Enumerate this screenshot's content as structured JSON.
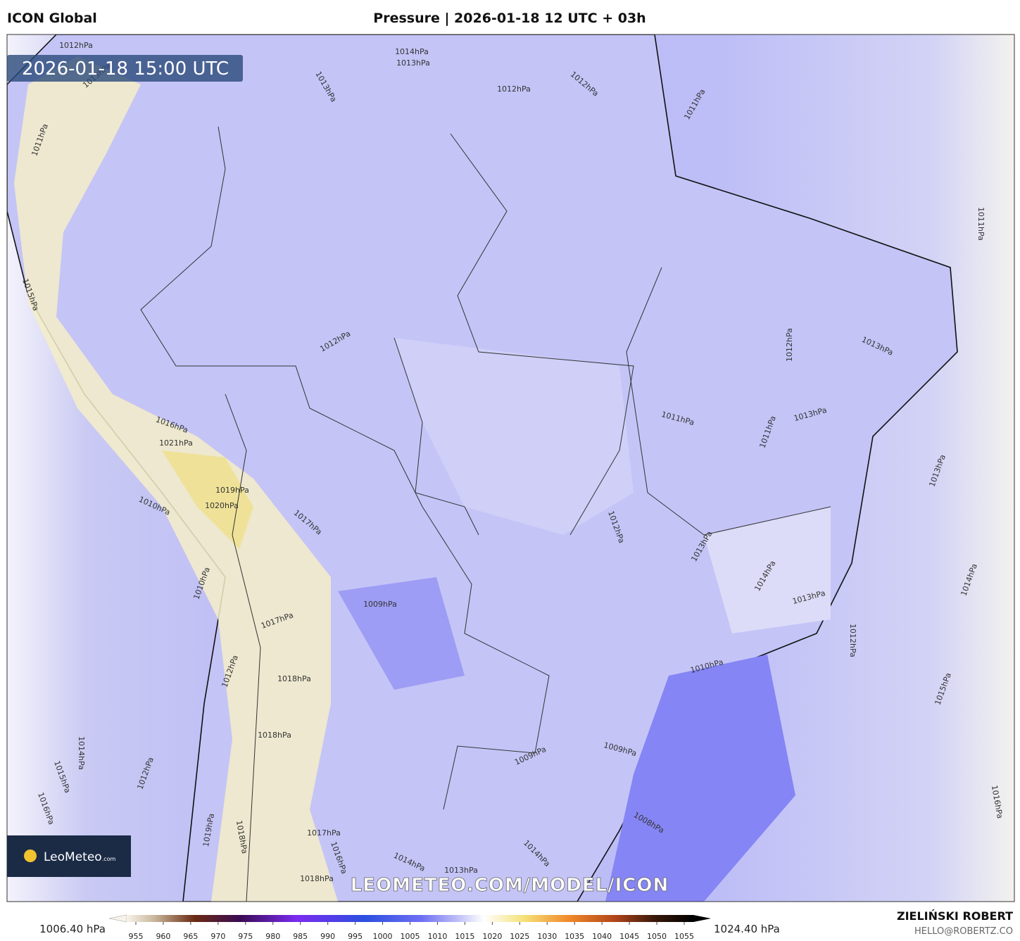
{
  "header": {
    "model": "ICON Global",
    "title": "Pressure | 2026-01-18 12 UTC + 03h"
  },
  "map": {
    "timestamp": "2026-01-18 15:00 UTC",
    "watermark": "LEOMETEO.COM/MODEL/ICON",
    "logo": "LeoMeteo",
    "logo_suffix": ".com",
    "isobar_labels": [
      "1012hPa",
      "1014hPa",
      "1013hPa",
      "1013hPa",
      "1012hPa",
      "1012hPa",
      "1011hPa",
      "1011hPa",
      "1012hPa",
      "1011hPa",
      "1012hPa",
      "1013hPa",
      "1013hPa",
      "1011hPa",
      "1013hPa",
      "1016hPa",
      "1021hPa",
      "1019hPa",
      "1020hPa",
      "1017hPa",
      "1010hPa",
      "1012hPa",
      "1013hPa",
      "1014hPa",
      "1013hPa",
      "1014hPa",
      "1009hPa",
      "1017hPa",
      "1012hPa",
      "1010hPa",
      "1015hPa",
      "1018hPa",
      "1012hPa",
      "1018hPa",
      "1009hPa",
      "1009hPa",
      "1012hPa",
      "1014hPa",
      "1015hPa",
      "1016hPa",
      "1016hPa",
      "1008hPa",
      "1017hPa",
      "1014hPa",
      "1013hPa",
      "1014hPa",
      "1018hPa",
      "1016hPa",
      "1015hPa",
      "1013hPa",
      "1019hPa",
      "1018hPa",
      "1010hPa",
      "1011hPa"
    ]
  },
  "colorbar": {
    "min_label": "1006.40 hPa",
    "max_label": "1024.40 hPa",
    "ticks": [
      955,
      960,
      965,
      970,
      975,
      980,
      985,
      990,
      995,
      1000,
      1005,
      1010,
      1015,
      1020,
      1025,
      1030,
      1035,
      1040,
      1045,
      1050,
      1055
    ]
  },
  "credit": {
    "author": "ZIELIŃSKI ROBERT",
    "email": "HELLO@ROBERTZ.CO"
  }
}
